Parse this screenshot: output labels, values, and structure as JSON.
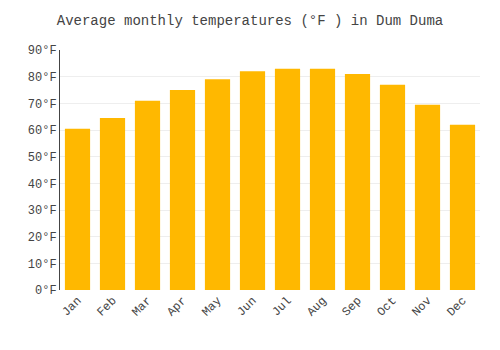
{
  "chart_data": {
    "type": "bar",
    "title": "Average monthly temperatures (°F ) in Dum Duma",
    "categories": [
      "Jan",
      "Feb",
      "Mar",
      "Apr",
      "May",
      "Jun",
      "Jul",
      "Aug",
      "Sep",
      "Oct",
      "Nov",
      "Dec"
    ],
    "values": [
      60.5,
      64.5,
      71,
      75,
      79,
      82,
      83,
      83,
      81,
      77,
      69.5,
      62
    ],
    "color": "#FFB800",
    "ylim": [
      0,
      90
    ],
    "yticks": [
      {
        "value": 0,
        "label": "0°F"
      },
      {
        "value": 10,
        "label": "10°F"
      },
      {
        "value": 20,
        "label": "20°F"
      },
      {
        "value": 30,
        "label": "30°F"
      },
      {
        "value": 40,
        "label": "40°F"
      },
      {
        "value": 50,
        "label": "50°F"
      },
      {
        "value": 60,
        "label": "60°F"
      },
      {
        "value": 70,
        "label": "70°F"
      },
      {
        "value": 80,
        "label": "80°F"
      },
      {
        "value": 90,
        "label": "90°F"
      }
    ],
    "grid": true
  }
}
